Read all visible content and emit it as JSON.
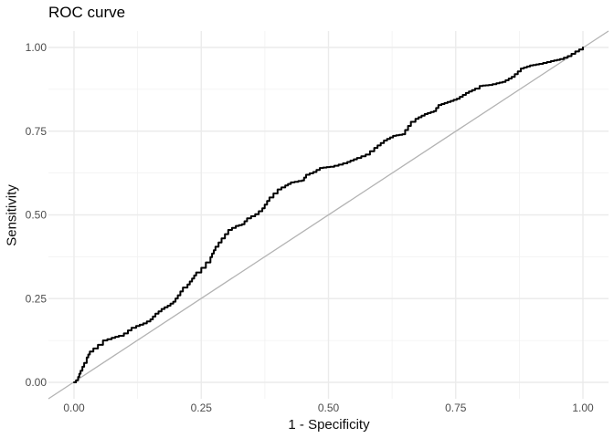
{
  "chart_data": {
    "type": "line",
    "title": "ROC curve",
    "xlabel": "1 - Specificity",
    "ylabel": "Sensitivity",
    "xlim": [
      0,
      1
    ],
    "ylim": [
      0,
      1
    ],
    "grid": "on",
    "legend_position": "none",
    "x_ticks": {
      "values": [
        0,
        0.25,
        0.5,
        0.75,
        1
      ],
      "labels": [
        "0.00",
        "0.25",
        "0.50",
        "0.75",
        "1.00"
      ]
    },
    "y_ticks": {
      "values": [
        0,
        0.25,
        0.5,
        0.75,
        1
      ],
      "labels": [
        "0.00",
        "0.25",
        "0.50",
        "0.75",
        "1.00"
      ]
    },
    "minor_ticks": [
      0.125,
      0.375,
      0.625,
      0.875
    ],
    "colors": {
      "roc_curve": "#000000",
      "diagonal": "#b3b3b3",
      "grid_major": "#ebebeb",
      "grid_minor": "#f1f1f1",
      "tick_text": "#4d4d4d",
      "title_text": "#000000",
      "background": "#ffffff"
    },
    "series": [
      {
        "name": "ROC curve",
        "style": "staircase",
        "points": [
          [
            0.0,
            0.0
          ],
          [
            0.004,
            0.006
          ],
          [
            0.008,
            0.016
          ],
          [
            0.013,
            0.035
          ],
          [
            0.02,
            0.058
          ],
          [
            0.025,
            0.074
          ],
          [
            0.031,
            0.092
          ],
          [
            0.038,
            0.101
          ],
          [
            0.047,
            0.112
          ],
          [
            0.057,
            0.125
          ],
          [
            0.074,
            0.133
          ],
          [
            0.088,
            0.139
          ],
          [
            0.098,
            0.146
          ],
          [
            0.106,
            0.155
          ],
          [
            0.113,
            0.163
          ],
          [
            0.122,
            0.168
          ],
          [
            0.136,
            0.176
          ],
          [
            0.15,
            0.188
          ],
          [
            0.16,
            0.205
          ],
          [
            0.172,
            0.219
          ],
          [
            0.184,
            0.229
          ],
          [
            0.195,
            0.241
          ],
          [
            0.204,
            0.26
          ],
          [
            0.214,
            0.283
          ],
          [
            0.223,
            0.292
          ],
          [
            0.232,
            0.31
          ],
          [
            0.24,
            0.328
          ],
          [
            0.25,
            0.342
          ],
          [
            0.259,
            0.358
          ],
          [
            0.268,
            0.374
          ],
          [
            0.278,
            0.405
          ],
          [
            0.29,
            0.43
          ],
          [
            0.303,
            0.455
          ],
          [
            0.318,
            0.467
          ],
          [
            0.33,
            0.472
          ],
          [
            0.34,
            0.49
          ],
          [
            0.356,
            0.502
          ],
          [
            0.37,
            0.52
          ],
          [
            0.384,
            0.552
          ],
          [
            0.4,
            0.576
          ],
          [
            0.415,
            0.588
          ],
          [
            0.426,
            0.597
          ],
          [
            0.448,
            0.603
          ],
          [
            0.456,
            0.62
          ],
          [
            0.47,
            0.628
          ],
          [
            0.483,
            0.64
          ],
          [
            0.503,
            0.644
          ],
          [
            0.52,
            0.65
          ],
          [
            0.537,
            0.658
          ],
          [
            0.556,
            0.67
          ],
          [
            0.573,
            0.68
          ],
          [
            0.59,
            0.7
          ],
          [
            0.609,
            0.722
          ],
          [
            0.627,
            0.736
          ],
          [
            0.645,
            0.741
          ],
          [
            0.662,
            0.778
          ],
          [
            0.671,
            0.787
          ],
          [
            0.689,
            0.801
          ],
          [
            0.707,
            0.81
          ],
          [
            0.716,
            0.828
          ],
          [
            0.734,
            0.837
          ],
          [
            0.752,
            0.847
          ],
          [
            0.77,
            0.864
          ],
          [
            0.788,
            0.877
          ],
          [
            0.797,
            0.885
          ],
          [
            0.815,
            0.888
          ],
          [
            0.83,
            0.893
          ],
          [
            0.842,
            0.897
          ],
          [
            0.86,
            0.912
          ],
          [
            0.878,
            0.937
          ],
          [
            0.896,
            0.946
          ],
          [
            0.914,
            0.951
          ],
          [
            0.937,
            0.959
          ],
          [
            0.955,
            0.965
          ],
          [
            0.97,
            0.974
          ],
          [
            0.985,
            0.988
          ],
          [
            1.0,
            1.0
          ]
        ]
      },
      {
        "name": "Chance diagonal",
        "style": "straight-full-panel",
        "points": [
          [
            0,
            0
          ],
          [
            1,
            1
          ]
        ]
      }
    ]
  }
}
